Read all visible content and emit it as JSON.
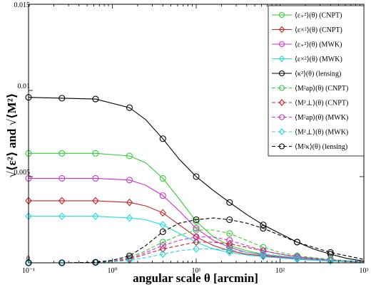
{
  "chart_data": {
    "type": "line",
    "xlabel": "angular scale θ [arcmin]",
    "ylabel": "√⟨ε²⟩ and √⟨M²⟩",
    "x_scale": "log",
    "xlim": [
      0.1,
      1000
    ],
    "ylim": [
      0,
      0.015
    ],
    "x_ticks": [
      0.1,
      1,
      10,
      100,
      1000
    ],
    "x_tick_labels": [
      "10⁻¹",
      "10⁰",
      "10¹",
      "10²",
      "10³"
    ],
    "y_ticks": [
      0,
      0.005,
      0.01,
      0.015
    ],
    "y_tick_labels": [
      "0",
      "0.005",
      "0.01",
      "0.015"
    ],
    "grid": false,
    "legend_position": "top-right",
    "marker_x": [
      0.1,
      0.25,
      0.63,
      1.6,
      4,
      10,
      25,
      63,
      160,
      400
    ],
    "series": [
      {
        "name": "⟨ε₊²⟩(θ) (CNPT)",
        "color": "#33cc33",
        "style": "solid",
        "marker": "circle",
        "x": [
          0.1,
          0.63,
          1.6,
          2.5,
          4,
          6.3,
          10,
          16,
          25,
          40,
          63,
          100,
          160,
          250,
          400,
          630,
          1000
        ],
        "y": [
          0.00635,
          0.00635,
          0.0062,
          0.0058,
          0.0049,
          0.0037,
          0.0024,
          0.0015,
          0.001,
          0.0007,
          0.0005,
          0.00038,
          0.0003,
          0.00022,
          0.00015,
          9e-05,
          4e-05
        ]
      },
      {
        "name": "⟨ε×²⟩(θ) (CNPT)",
        "color": "#cc2222",
        "style": "solid",
        "marker": "diamond",
        "x": [
          0.1,
          0.63,
          1.6,
          2.5,
          4,
          6.3,
          10,
          16,
          25,
          40,
          63,
          100,
          160,
          250,
          400,
          630,
          1000
        ],
        "y": [
          0.0036,
          0.0036,
          0.0035,
          0.0033,
          0.0029,
          0.0022,
          0.0015,
          0.001,
          0.0007,
          0.0005,
          0.0004,
          0.0003,
          0.00022,
          0.00016,
          0.00011,
          7e-05,
          3e-05
        ]
      },
      {
        "name": "⟨ε₊²⟩(θ) (MWK)",
        "color": "#cc33cc",
        "style": "solid",
        "marker": "circle",
        "x": [
          0.1,
          0.63,
          1.6,
          2.5,
          4,
          6.3,
          10,
          16,
          25,
          40,
          63,
          100,
          160,
          250,
          400,
          630,
          1000
        ],
        "y": [
          0.0049,
          0.0049,
          0.0048,
          0.0045,
          0.0039,
          0.003,
          0.002,
          0.0013,
          0.0009,
          0.0006,
          0.00045,
          0.00034,
          0.00026,
          0.0002,
          0.00014,
          9e-05,
          4e-05
        ]
      },
      {
        "name": "⟨ε×²⟩(θ) (MWK)",
        "color": "#22dddd",
        "style": "solid",
        "marker": "diamond",
        "x": [
          0.1,
          0.63,
          1.6,
          2.5,
          4,
          6.3,
          10,
          16,
          25,
          40,
          63,
          100,
          160,
          250,
          400,
          630,
          1000
        ],
        "y": [
          0.0027,
          0.0027,
          0.0026,
          0.0025,
          0.0022,
          0.0017,
          0.0012,
          0.0008,
          0.0006,
          0.00045,
          0.00035,
          0.00028,
          0.0002,
          0.00015,
          0.0001,
          7e-05,
          3e-05
        ]
      },
      {
        "name": "⟨κ²⟩(θ) (lensing)",
        "color": "#000000",
        "style": "solid",
        "marker": "circle",
        "x": [
          0.1,
          0.63,
          1.6,
          2.5,
          4,
          6.3,
          10,
          16,
          25,
          40,
          63,
          100,
          160,
          250,
          400,
          630,
          1000
        ],
        "y": [
          0.0096,
          0.0095,
          0.009,
          0.0083,
          0.0072,
          0.006,
          0.005,
          0.0042,
          0.0035,
          0.0028,
          0.0022,
          0.0017,
          0.0012,
          0.0008,
          0.0005,
          0.00025,
          0.0001
        ]
      },
      {
        "name": "⟨M²ap⟩(θ) (CNPT)",
        "color": "#33cc33",
        "style": "dashed",
        "marker": "circle",
        "x": [
          0.1,
          0.3,
          0.63,
          1,
          1.6,
          2.5,
          4,
          6.3,
          10,
          16,
          25,
          40,
          63,
          100,
          160,
          250,
          400,
          630,
          1000
        ],
        "y": [
          0,
          0,
          3e-05,
          0.0001,
          0.0003,
          0.0007,
          0.0012,
          0.0016,
          0.0019,
          0.0019,
          0.0017,
          0.0013,
          0.0009,
          0.0006,
          0.0004,
          0.0003,
          0.0002,
          0.00012,
          8e-05
        ]
      },
      {
        "name": "⟨M²⊥⟩(θ) (CNPT)",
        "color": "#cc2222",
        "style": "dashed",
        "marker": "diamond",
        "x": [
          0.1,
          0.3,
          0.63,
          1,
          1.6,
          2.5,
          4,
          6.3,
          10,
          16,
          25,
          40,
          63,
          100,
          160,
          250,
          400,
          630,
          1000
        ],
        "y": [
          0,
          0,
          2e-05,
          8e-05,
          0.0002,
          0.0005,
          0.0008,
          0.001,
          0.0012,
          0.0012,
          0.0011,
          0.0009,
          0.0007,
          0.0005,
          0.00035,
          0.00025,
          0.00015,
          0.0001,
          6e-05
        ]
      },
      {
        "name": "⟨M²ap⟩(θ) (MWK)",
        "color": "#cc33cc",
        "style": "dashed",
        "marker": "circle",
        "x": [
          0.1,
          0.3,
          0.63,
          1,
          1.6,
          2.5,
          4,
          6.3,
          10,
          16,
          25,
          40,
          63,
          100,
          160,
          250,
          400,
          630,
          1000
        ],
        "y": [
          0,
          0,
          2e-05,
          0.0001,
          0.00025,
          0.0006,
          0.001,
          0.0013,
          0.0015,
          0.0015,
          0.0013,
          0.001,
          0.0007,
          0.0005,
          0.00035,
          0.00025,
          0.00015,
          0.0001,
          6e-05
        ]
      },
      {
        "name": "⟨M²⊥⟩(θ) (MWK)",
        "color": "#22dddd",
        "style": "dashed",
        "marker": "diamond",
        "x": [
          0.1,
          0.3,
          0.63,
          1,
          1.6,
          2.5,
          4,
          6.3,
          10,
          16,
          25,
          40,
          63,
          100,
          160,
          250,
          400,
          630,
          1000
        ],
        "y": [
          0,
          0,
          1e-05,
          6e-05,
          0.00015,
          0.0003,
          0.0005,
          0.0007,
          0.0008,
          0.0008,
          0.00075,
          0.0006,
          0.0005,
          0.0004,
          0.0003,
          0.0002,
          0.00012,
          8e-05,
          5e-05
        ]
      },
      {
        "name": "⟨M²κ⟩(θ) (lensing)",
        "color": "#000000",
        "style": "dashed",
        "marker": "circle",
        "x": [
          0.1,
          0.3,
          0.63,
          1,
          1.6,
          2.5,
          4,
          6.3,
          10,
          16,
          25,
          40,
          63,
          100,
          160,
          250,
          400,
          630,
          1000
        ],
        "y": [
          0,
          0,
          3e-05,
          0.00015,
          0.0004,
          0.001,
          0.0018,
          0.0023,
          0.0025,
          0.0026,
          0.0025,
          0.0023,
          0.002,
          0.0016,
          0.0012,
          0.0009,
          0.0006,
          0.0004,
          0.0002
        ]
      }
    ]
  }
}
